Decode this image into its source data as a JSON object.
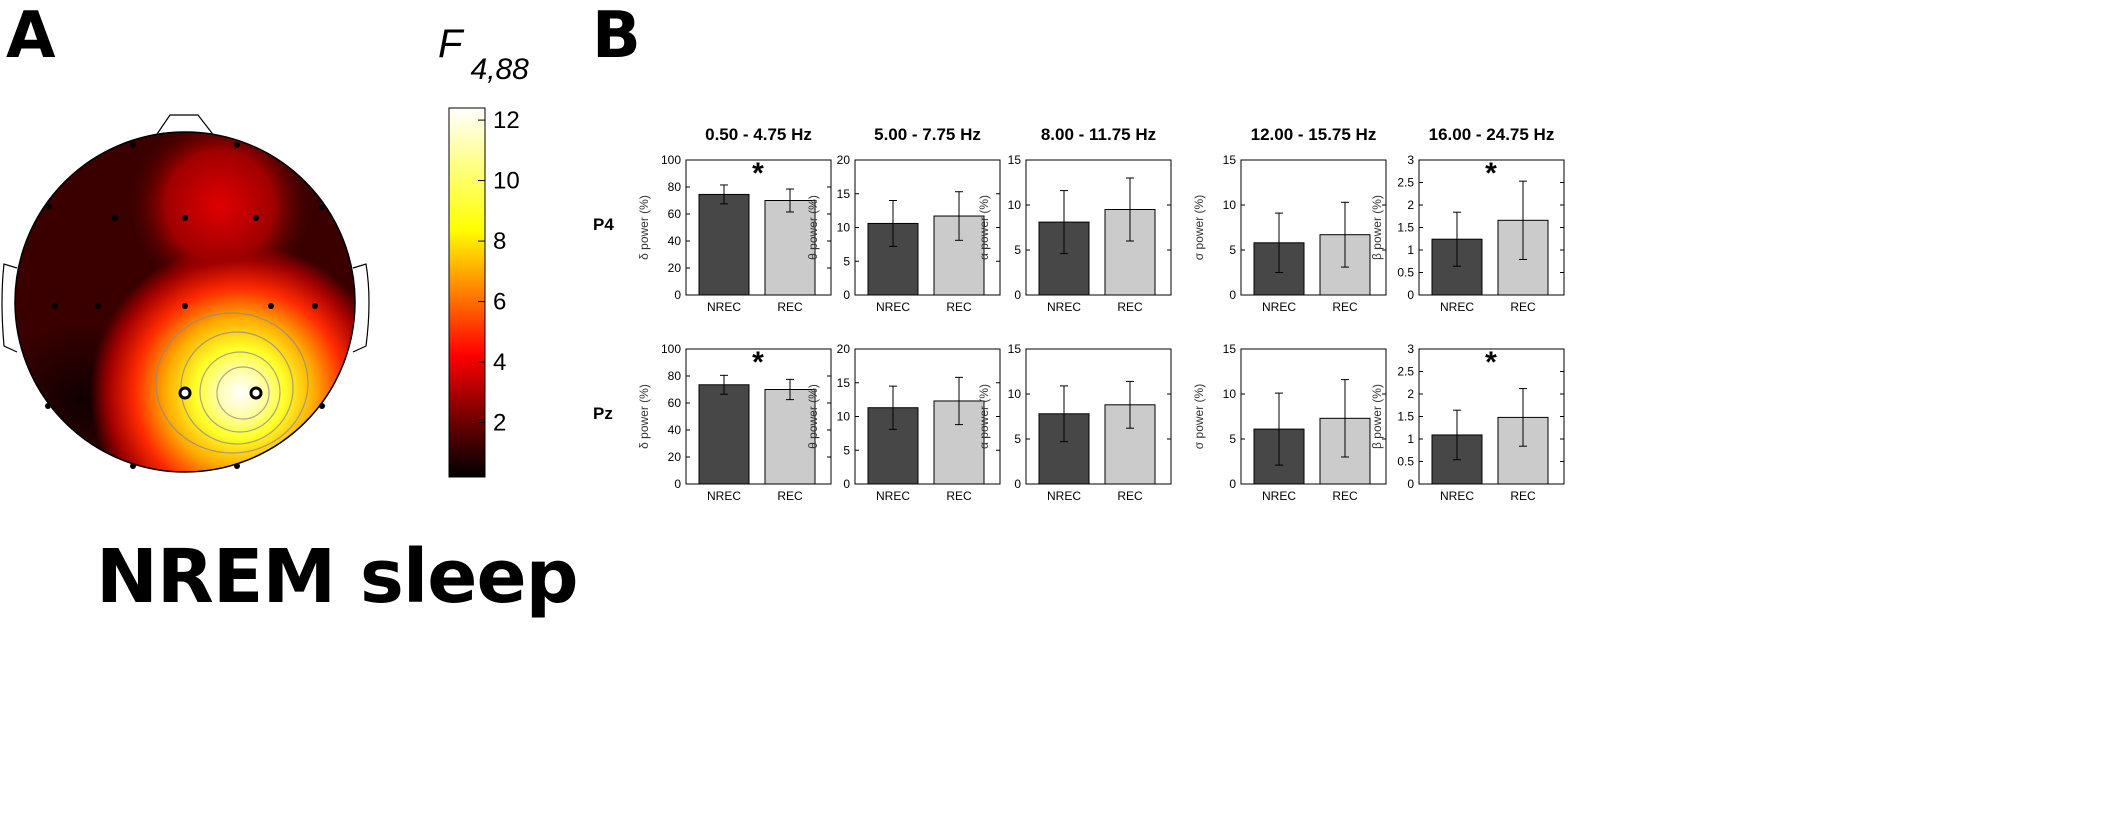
{
  "panels": {
    "a_label": "A",
    "b_label": "B"
  },
  "condition_label": "NREM sleep",
  "topomap": {
    "stat_symbol": "F",
    "stat_subscript": "4,88",
    "colorbar_ticks": [
      2,
      4,
      6,
      8,
      10,
      12
    ],
    "colorbar_range": [
      0.2,
      12.4
    ],
    "colormap": "hot",
    "highlighted_electrodes": [
      "P4",
      "Pz"
    ]
  },
  "bar_colors": {
    "NREC": "#474747",
    "REC": "#cbcbcb"
  },
  "chart_data": {
    "type": "bar",
    "columns": [
      "0.50 - 4.75 Hz",
      "5.00 - 7.75 Hz",
      "8.00 - 11.75 Hz",
      "12.00 - 15.75 Hz",
      "16.00 - 24.75 Hz"
    ],
    "rows": [
      "P4",
      "Pz"
    ],
    "categories": [
      "NREC",
      "REC"
    ],
    "ylabels": [
      "δ power (%)",
      "θ power (%)",
      "α power (%)",
      "σ power (%)",
      "β power (%)"
    ],
    "ylims": [
      [
        0,
        100
      ],
      [
        0,
        20
      ],
      [
        0,
        15
      ],
      [
        0,
        15
      ],
      [
        0,
        3
      ]
    ],
    "yticks": [
      [
        0,
        20,
        40,
        60,
        80,
        100
      ],
      [
        0,
        5,
        10,
        15,
        20
      ],
      [
        0,
        5,
        10,
        15
      ],
      [
        0,
        5,
        10,
        15
      ],
      [
        0,
        0.5,
        1,
        1.5,
        2,
        2.5,
        3
      ]
    ],
    "panels": [
      {
        "row": "P4",
        "band": "0.50 - 4.75 Hz",
        "values": [
          74.5,
          70
        ],
        "errors": [
          7,
          8.5
        ],
        "significance": "*"
      },
      {
        "row": "P4",
        "band": "5.00 - 7.75 Hz",
        "values": [
          10.6,
          11.7
        ],
        "errors": [
          3.4,
          3.6
        ],
        "significance": ""
      },
      {
        "row": "P4",
        "band": "8.00 - 11.75 Hz",
        "values": [
          8.1,
          9.5
        ],
        "errors": [
          3.5,
          3.5
        ],
        "significance": ""
      },
      {
        "row": "P4",
        "band": "12.00 - 15.75 Hz",
        "values": [
          5.8,
          6.7
        ],
        "errors": [
          3.3,
          3.6
        ],
        "significance": ""
      },
      {
        "row": "P4",
        "band": "16.00 - 24.75 Hz",
        "values": [
          1.24,
          1.66
        ],
        "errors": [
          0.6,
          0.87
        ],
        "significance": "*"
      },
      {
        "row": "Pz",
        "band": "0.50 - 4.75 Hz",
        "values": [
          73.5,
          70
        ],
        "errors": [
          7,
          7.5
        ],
        "significance": "*"
      },
      {
        "row": "Pz",
        "band": "5.00 - 7.75 Hz",
        "values": [
          11.3,
          12.3
        ],
        "errors": [
          3.2,
          3.5
        ],
        "significance": ""
      },
      {
        "row": "Pz",
        "band": "8.00 - 11.75 Hz",
        "values": [
          7.8,
          8.8
        ],
        "errors": [
          3.1,
          2.6
        ],
        "significance": ""
      },
      {
        "row": "Pz",
        "band": "12.00 - 15.75 Hz",
        "values": [
          6.1,
          7.3
        ],
        "errors": [
          4.0,
          4.3
        ],
        "significance": ""
      },
      {
        "row": "Pz",
        "band": "16.00 - 24.75 Hz",
        "values": [
          1.09,
          1.48
        ],
        "errors": [
          0.55,
          0.64
        ],
        "significance": "*"
      }
    ]
  }
}
